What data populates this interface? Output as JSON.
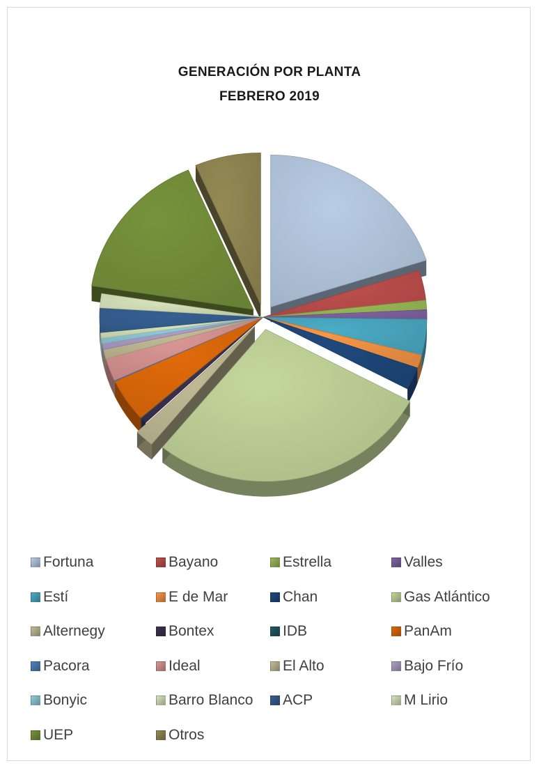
{
  "chart_data": {
    "type": "pie",
    "exploded": true,
    "style": "3d",
    "title": "GENERACIÓN  POR  PLANTA",
    "subtitle": "FEBRERO  2019",
    "legend_position": "bottom",
    "slices": [
      {
        "label": "Fortuna",
        "value": 20.0,
        "color": "#b8cce4",
        "exploded": true
      },
      {
        "label": "Bayano",
        "value": 3.2,
        "color": "#c0504d",
        "exploded": false
      },
      {
        "label": "Estrella",
        "value": 1.0,
        "color": "#9bbb59",
        "exploded": false
      },
      {
        "label": "Valles",
        "value": 1.0,
        "color": "#8064a2",
        "exploded": false
      },
      {
        "label": "Estí",
        "value": 3.8,
        "color": "#4bacc6",
        "exploded": false
      },
      {
        "label": "E de Mar",
        "value": 1.4,
        "color": "#f79646",
        "exploded": false
      },
      {
        "label": "Chan",
        "value": 2.4,
        "color": "#1f497d",
        "exploded": false
      },
      {
        "label": "Gas Atlántico",
        "value": 28.0,
        "color": "#c4d79b",
        "exploded": true
      },
      {
        "label": "Alternegy",
        "value": 1.9,
        "color": "#c4bd97",
        "exploded": true
      },
      {
        "label": "Bontex",
        "value": 0.6,
        "color": "#3f3151",
        "exploded": false
      },
      {
        "label": "IDB",
        "value": 0.1,
        "color": "#215967",
        "exploded": false
      },
      {
        "label": "PanAm",
        "value": 4.6,
        "color": "#e26b0a",
        "exploded": false
      },
      {
        "label": "Pacora",
        "value": 0.1,
        "color": "#4f81bd",
        "exploded": false
      },
      {
        "label": "Ideal",
        "value": 2.4,
        "color": "#da9694",
        "exploded": false
      },
      {
        "label": "El Alto",
        "value": 1.0,
        "color": "#c4bd97",
        "exploded": false
      },
      {
        "label": "Bajo Frío",
        "value": 0.6,
        "color": "#b1a0c7",
        "exploded": false
      },
      {
        "label": "Bonyic",
        "value": 0.6,
        "color": "#92cddc",
        "exploded": false
      },
      {
        "label": "Barro Blanco",
        "value": 0.6,
        "color": "#d8e4bc",
        "exploded": false
      },
      {
        "label": "ACP",
        "value": 2.6,
        "color": "#366092",
        "exploded": false
      },
      {
        "label": "M Lirio",
        "value": 1.5,
        "color": "#d8e4bc",
        "exploded": false
      },
      {
        "label": "UEP",
        "value": 16.0,
        "color": "#77933c",
        "exploded": true
      },
      {
        "label": "Otros",
        "value": 6.5,
        "color": "#948a54",
        "exploded": true
      }
    ]
  }
}
